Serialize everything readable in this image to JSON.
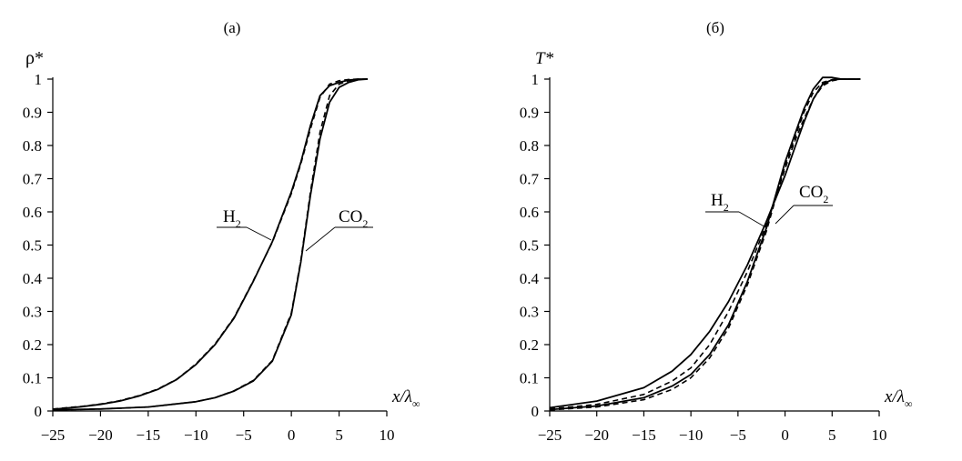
{
  "chart_data": [
    {
      "type": "line",
      "panel_label": "(а)",
      "ylabel": "ρ*",
      "xlabel": {
        "main": "x/λ",
        "sub": "∞"
      },
      "xlim": [
        -25,
        10
      ],
      "ylim": [
        0,
        1
      ],
      "xticks": [
        "−25",
        "−20",
        "−15",
        "−10",
        "−5",
        "0",
        "5",
        "10"
      ],
      "yticks": [
        "0",
        "0.1",
        "0.2",
        "0.3",
        "0.4",
        "0.5",
        "0.6",
        "0.7",
        "0.8",
        "0.9",
        "1"
      ],
      "grid": false,
      "curve_labels": [
        {
          "text": "H",
          "sub": "2",
          "series": "H2"
        },
        {
          "text": "CO",
          "sub": "2",
          "series": "CO2"
        }
      ],
      "series": [
        {
          "name": "H2",
          "style": "solid",
          "x": [
            -25,
            -22,
            -20,
            -18,
            -16,
            -14,
            -12,
            -10,
            -8,
            -6,
            -4,
            -2,
            0,
            1,
            2,
            3,
            4,
            5,
            6,
            7,
            8
          ],
          "y": [
            0.005,
            0.013,
            0.02,
            0.03,
            0.045,
            0.065,
            0.095,
            0.14,
            0.2,
            0.28,
            0.39,
            0.51,
            0.66,
            0.75,
            0.86,
            0.95,
            0.98,
            0.99,
            0.997,
            1.0,
            1.0
          ]
        },
        {
          "name": "H2",
          "style": "dashed",
          "x": [
            -25,
            -22,
            -20,
            -18,
            -16,
            -14,
            -12,
            -10,
            -8,
            -6,
            -4,
            -2,
            0,
            1,
            2,
            3,
            4,
            5,
            6,
            7,
            8
          ],
          "y": [
            0.006,
            0.014,
            0.021,
            0.031,
            0.046,
            0.066,
            0.096,
            0.142,
            0.202,
            0.282,
            0.392,
            0.508,
            0.655,
            0.745,
            0.85,
            0.945,
            0.985,
            0.995,
            0.999,
            1.0,
            1.0
          ]
        },
        {
          "name": "CO2",
          "style": "solid",
          "x": [
            -25,
            -20,
            -15,
            -10,
            -8,
            -6,
            -4,
            -2,
            0,
            1,
            2,
            3,
            4,
            5,
            6,
            7,
            8
          ],
          "y": [
            0.003,
            0.006,
            0.012,
            0.028,
            0.04,
            0.06,
            0.09,
            0.15,
            0.29,
            0.45,
            0.65,
            0.82,
            0.93,
            0.975,
            0.99,
            0.998,
            1.0
          ]
        },
        {
          "name": "CO2",
          "style": "dashed",
          "x": [
            -25,
            -20,
            -15,
            -10,
            -8,
            -6,
            -4,
            -2,
            0,
            1,
            2,
            3,
            4,
            5,
            6,
            7,
            8
          ],
          "y": [
            0.003,
            0.006,
            0.012,
            0.028,
            0.04,
            0.061,
            0.092,
            0.152,
            0.295,
            0.455,
            0.66,
            0.84,
            0.95,
            0.985,
            0.995,
            0.999,
            1.0
          ]
        }
      ]
    },
    {
      "type": "line",
      "panel_label": "(б)",
      "ylabel": "T*",
      "xlabel": {
        "main": "x/λ",
        "sub": "∞"
      },
      "xlim": [
        -25,
        10
      ],
      "ylim": [
        0,
        1
      ],
      "xticks": [
        "−25",
        "−20",
        "−15",
        "−10",
        "−5",
        "0",
        "5",
        "10"
      ],
      "yticks": [
        "0",
        "0.1",
        "0.2",
        "0.3",
        "0.4",
        "0.5",
        "0.6",
        "0.7",
        "0.8",
        "0.9",
        "1"
      ],
      "grid": false,
      "curve_labels": [
        {
          "text": "H",
          "sub": "2",
          "series": "H2"
        },
        {
          "text": "CO",
          "sub": "2",
          "series": "CO2"
        }
      ],
      "series": [
        {
          "name": "H2",
          "style": "solid",
          "x": [
            -25,
            -20,
            -15,
            -12,
            -10,
            -8,
            -6,
            -4,
            -2,
            0,
            1,
            2,
            3,
            4,
            5,
            6,
            8
          ],
          "y": [
            0.01,
            0.03,
            0.07,
            0.12,
            0.17,
            0.24,
            0.33,
            0.44,
            0.57,
            0.71,
            0.79,
            0.87,
            0.94,
            0.985,
            0.998,
            1.0,
            1.0
          ]
        },
        {
          "name": "H2",
          "style": "dashed",
          "x": [
            -25,
            -20,
            -15,
            -12,
            -10,
            -8,
            -6,
            -4,
            -2,
            0,
            1,
            2,
            3,
            4,
            5,
            6,
            8
          ],
          "y": [
            0.006,
            0.02,
            0.05,
            0.09,
            0.13,
            0.2,
            0.3,
            0.42,
            0.56,
            0.73,
            0.81,
            0.88,
            0.94,
            0.98,
            0.995,
            1.0,
            1.0
          ]
        },
        {
          "name": "CO2",
          "style": "solid",
          "x": [
            -25,
            -20,
            -15,
            -12,
            -10,
            -8,
            -6,
            -4,
            -2,
            0,
            1,
            2,
            3,
            4,
            5,
            6,
            8
          ],
          "y": [
            0.004,
            0.015,
            0.04,
            0.075,
            0.11,
            0.17,
            0.26,
            0.39,
            0.55,
            0.75,
            0.83,
            0.91,
            0.97,
            1.005,
            1.005,
            1.0,
            1.0
          ]
        },
        {
          "name": "CO2",
          "style": "dashed",
          "x": [
            -25,
            -20,
            -15,
            -12,
            -10,
            -8,
            -6,
            -4,
            -2,
            0,
            1,
            2,
            3,
            4,
            5,
            6,
            8
          ],
          "y": [
            0.003,
            0.012,
            0.034,
            0.065,
            0.1,
            0.16,
            0.25,
            0.38,
            0.54,
            0.74,
            0.82,
            0.9,
            0.96,
            0.99,
            0.998,
            1.0,
            1.0
          ]
        }
      ]
    }
  ]
}
